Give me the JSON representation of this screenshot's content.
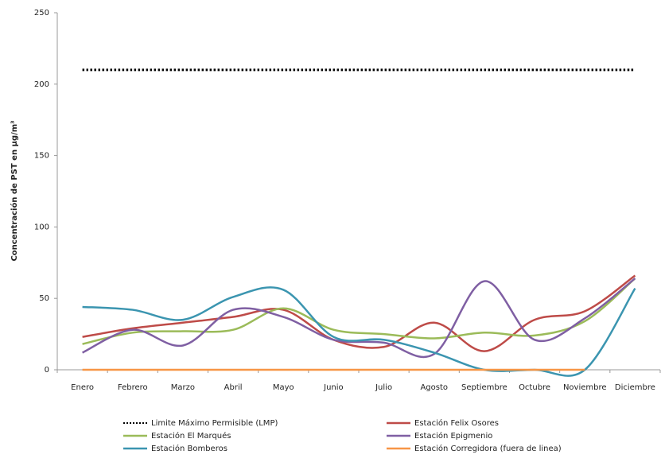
{
  "chart_data": {
    "type": "line",
    "y_label": "Concentración de PST en  µg/m³",
    "categories": [
      "Enero",
      "Febrero",
      "Marzo",
      "Abril",
      "Mayo",
      "Junio",
      "Julio",
      "Agosto",
      "Septiembre",
      "Octubre",
      "Noviembre",
      "Diciembre"
    ],
    "series": [
      {
        "name": "Limite Máximo  Permisible (LMP)",
        "color": "#000000",
        "dash": "dotted",
        "values": [
          210,
          210,
          210,
          210,
          210,
          210,
          210,
          210,
          210,
          210,
          210,
          210
        ]
      },
      {
        "name": "Estación Felix Osores",
        "color": "#be4b48",
        "values": [
          23,
          29,
          33,
          37,
          42,
          21,
          16,
          33,
          13,
          35,
          41,
          66
        ]
      },
      {
        "name": "Estación El Marqués",
        "color": "#9bbb59",
        "values": [
          18,
          26,
          27,
          28,
          43,
          28,
          25,
          22,
          26,
          24,
          34,
          64
        ]
      },
      {
        "name": "Estación Epigmenio",
        "color": "#7f5fa3",
        "values": [
          12,
          28,
          17,
          42,
          37,
          21,
          19,
          11,
          62,
          21,
          36,
          64
        ]
      },
      {
        "name": "Estación Bomberos",
        "color": "#3b95b0",
        "values": [
          44,
          42,
          35,
          51,
          56,
          23,
          21,
          12,
          0,
          0,
          0,
          57
        ]
      },
      {
        "name": "Estación Corregidora (fuera de linea)",
        "color": "#f79646",
        "values": [
          0,
          0,
          0,
          0,
          0,
          0,
          0,
          0,
          0,
          0,
          0,
          null
        ]
      }
    ],
    "ylim": [
      0,
      250
    ],
    "yticks": [
      0,
      50,
      100,
      150,
      200,
      250
    ],
    "grid": false,
    "legend": "bottom",
    "smooth": true
  }
}
